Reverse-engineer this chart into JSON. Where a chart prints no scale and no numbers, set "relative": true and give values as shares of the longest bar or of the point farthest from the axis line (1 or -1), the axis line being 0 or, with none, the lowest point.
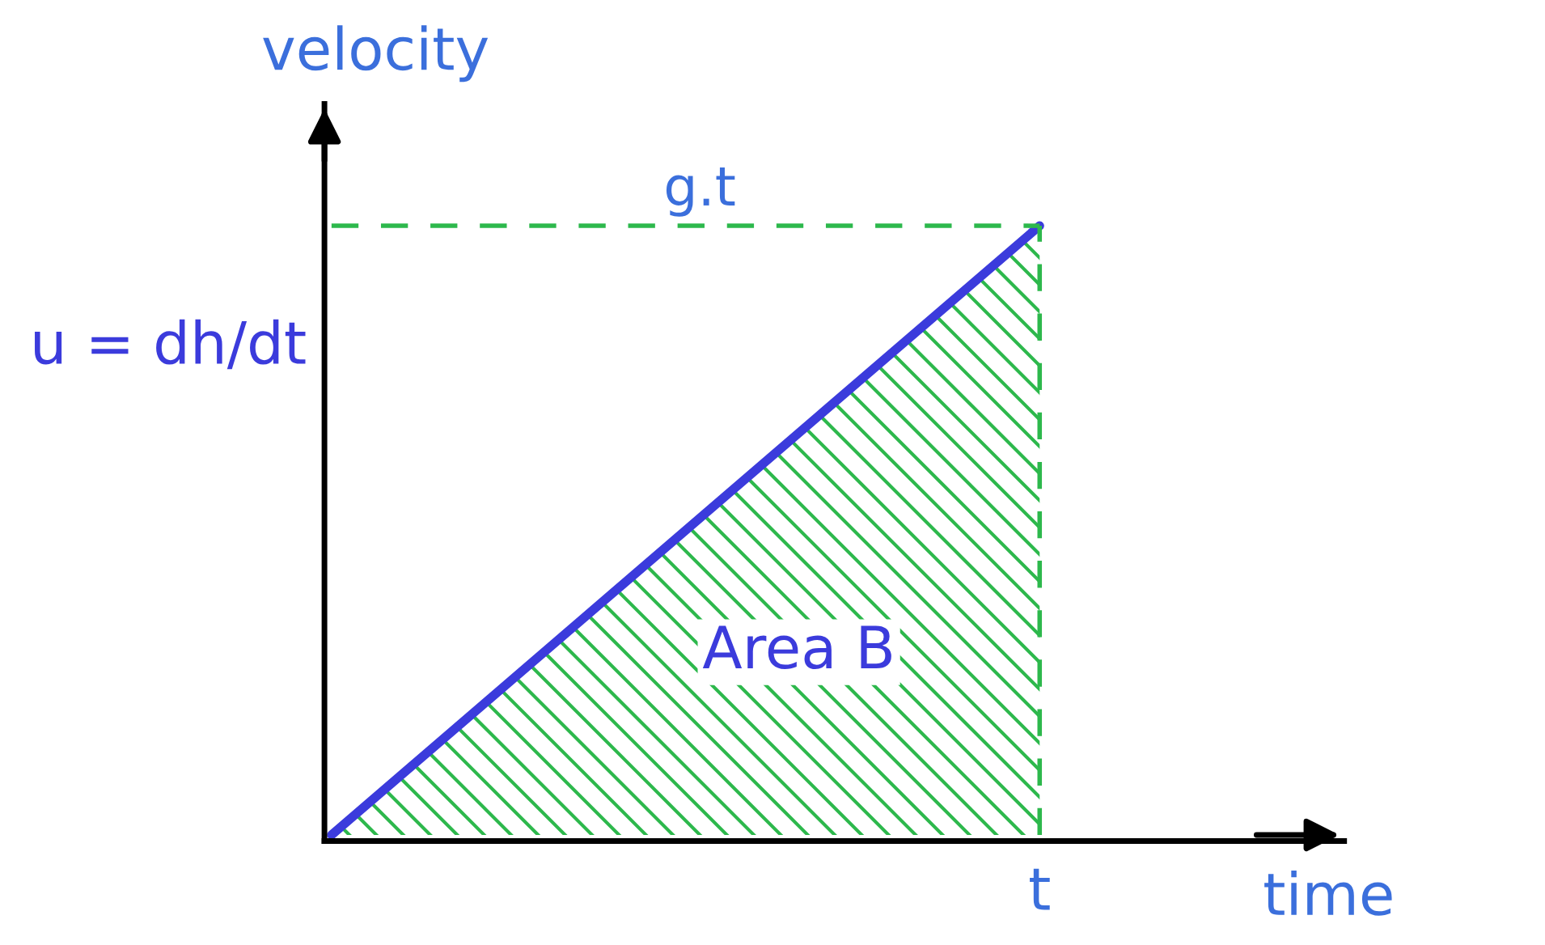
{
  "chart_data": {
    "type": "area",
    "relative": true,
    "xlabel": "time",
    "ylabel": "velocity",
    "categories": [
      null,
      null
    ],
    "series": [
      {
        "color": "#3b3bdc",
        "values": [
          0,
          1
        ]
      }
    ],
    "ref_lines": [
      {
        "axis": "y",
        "value": 1,
        "label": "g.t",
        "color": "#2db84c",
        "line_style": "dashed"
      },
      {
        "axis": "x",
        "value": "t",
        "color": "#2db84c",
        "line_style": "dashed"
      }
    ],
    "annotations": [
      "u = dh/dt",
      "Area B"
    ],
    "grid": false,
    "legend": false
  }
}
